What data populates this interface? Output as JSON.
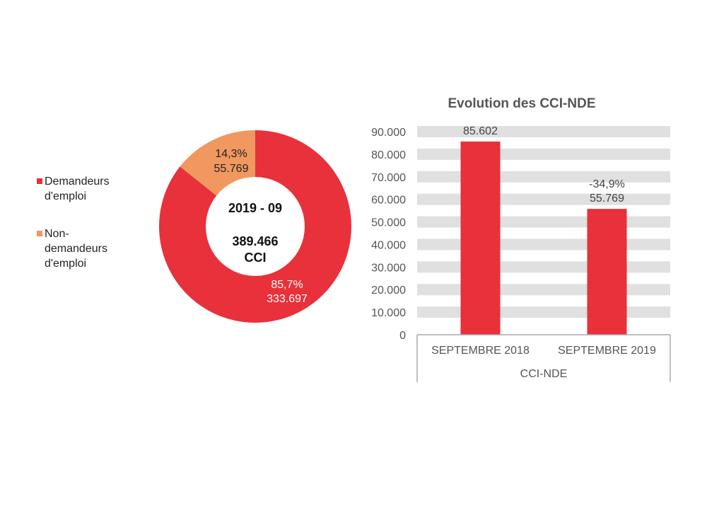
{
  "chart_data": [
    {
      "type": "pie",
      "variant": "donut",
      "center_label": {
        "period": "2019 - 09",
        "total": "389.466",
        "unit": "CCI"
      },
      "slices": [
        {
          "name": "Non-demandeurs d'emploi",
          "value": 55769,
          "value_label": "55.769",
          "percent_label": "14,3%",
          "color": "#f0985f"
        },
        {
          "name": "Demandeurs d'emploi",
          "value": 333697,
          "value_label": "333.697",
          "percent_label": "85,7%",
          "color": "#e8313a"
        }
      ],
      "legend": {
        "position": "left",
        "items": [
          {
            "label": "Demandeurs d'emploi",
            "color": "#e8313a"
          },
          {
            "label": "Non-demandeurs d'emploi",
            "color": "#f0985f"
          }
        ]
      }
    },
    {
      "type": "bar",
      "title": "Evolution des CCI-NDE",
      "categories": [
        "SEPTEMBRE 2018",
        "SEPTEMBRE 2019"
      ],
      "group_label": "CCI-NDE",
      "values": [
        85602,
        55769
      ],
      "data_labels": [
        [
          "85.602"
        ],
        [
          "-34,9%",
          "55.769"
        ]
      ],
      "yticks": [
        "0",
        "10.000",
        "20.000",
        "30.000",
        "40.000",
        "50.000",
        "60.000",
        "70.000",
        "80.000",
        "90.000"
      ],
      "ylim": [
        0,
        90000
      ],
      "grid": true,
      "bar_color": "#e8313a",
      "grid_color": "#e0e0e0"
    }
  ]
}
